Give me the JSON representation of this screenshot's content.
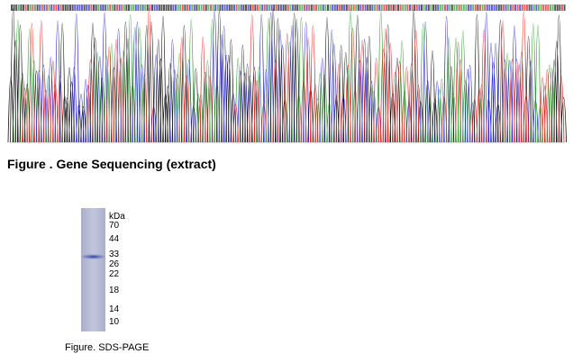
{
  "sequencing_figure": {
    "caption": "Figure . Gene Sequencing (extract)"
  },
  "gel_figure": {
    "unit": "kDa",
    "markers": [
      "70",
      "44",
      "33",
      "26",
      "22",
      "18",
      "14",
      "10"
    ],
    "caption": "Figure. SDS-PAGE"
  }
}
